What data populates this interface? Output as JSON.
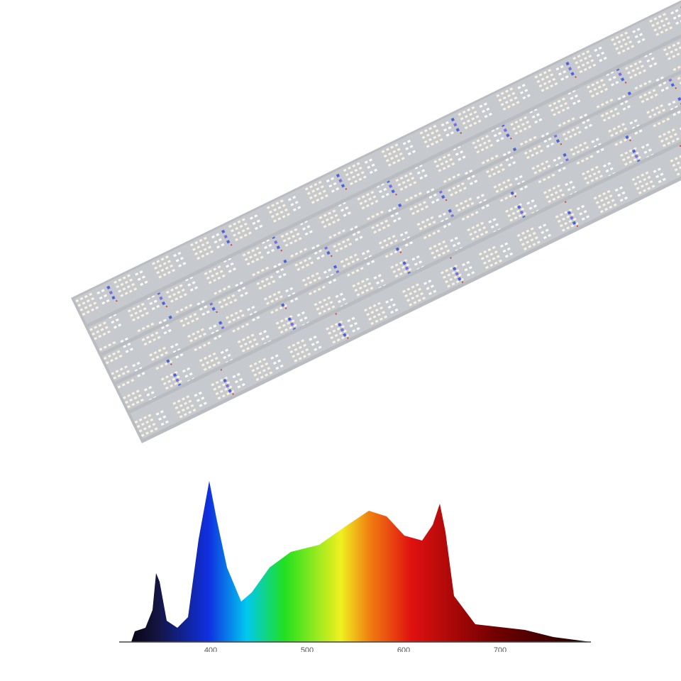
{
  "spectrum": {
    "x_labels": [
      "400",
      "500",
      "600",
      "700"
    ]
  }
}
